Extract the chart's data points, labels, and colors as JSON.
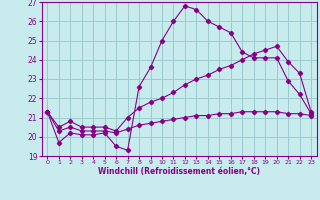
{
  "xlabel": "Windchill (Refroidissement éolien,°C)",
  "background_color": "#c8ecee",
  "line_color": "#880088",
  "grid_color": "#99cccc",
  "xlim": [
    -0.5,
    23.5
  ],
  "ylim": [
    19,
    27
  ],
  "yticks": [
    19,
    20,
    21,
    22,
    23,
    24,
    25,
    26,
    27
  ],
  "xticks": [
    0,
    1,
    2,
    3,
    4,
    5,
    6,
    7,
    8,
    9,
    10,
    11,
    12,
    13,
    14,
    15,
    16,
    17,
    18,
    19,
    20,
    21,
    22,
    23
  ],
  "series1_x": [
    0,
    1,
    2,
    3,
    4,
    5,
    6,
    7,
    8,
    9,
    10,
    11,
    12,
    13,
    14,
    15,
    16,
    17,
    18,
    19,
    20,
    21,
    22,
    23
  ],
  "series1_y": [
    21.3,
    19.7,
    20.2,
    20.1,
    20.1,
    20.2,
    19.5,
    19.3,
    22.6,
    23.6,
    25.0,
    26.0,
    26.8,
    26.6,
    26.0,
    25.7,
    25.4,
    24.4,
    24.1,
    24.1,
    24.1,
    22.9,
    22.2,
    21.2
  ],
  "series2_x": [
    0,
    1,
    2,
    3,
    4,
    5,
    6,
    7,
    8,
    9,
    10,
    11,
    12,
    13,
    14,
    15,
    16,
    17,
    18,
    19,
    20,
    21,
    22,
    23
  ],
  "series2_y": [
    21.3,
    20.5,
    20.8,
    20.5,
    20.5,
    20.5,
    20.3,
    21.0,
    21.5,
    21.8,
    22.0,
    22.3,
    22.7,
    23.0,
    23.2,
    23.5,
    23.7,
    24.0,
    24.3,
    24.5,
    24.7,
    23.9,
    23.3,
    21.3
  ],
  "series3_x": [
    0,
    1,
    2,
    3,
    4,
    5,
    6,
    7,
    8,
    9,
    10,
    11,
    12,
    13,
    14,
    15,
    16,
    17,
    18,
    19,
    20,
    21,
    22,
    23
  ],
  "series3_y": [
    21.3,
    20.3,
    20.5,
    20.3,
    20.3,
    20.3,
    20.2,
    20.4,
    20.6,
    20.7,
    20.8,
    20.9,
    21.0,
    21.1,
    21.1,
    21.2,
    21.2,
    21.3,
    21.3,
    21.3,
    21.3,
    21.2,
    21.2,
    21.1
  ]
}
